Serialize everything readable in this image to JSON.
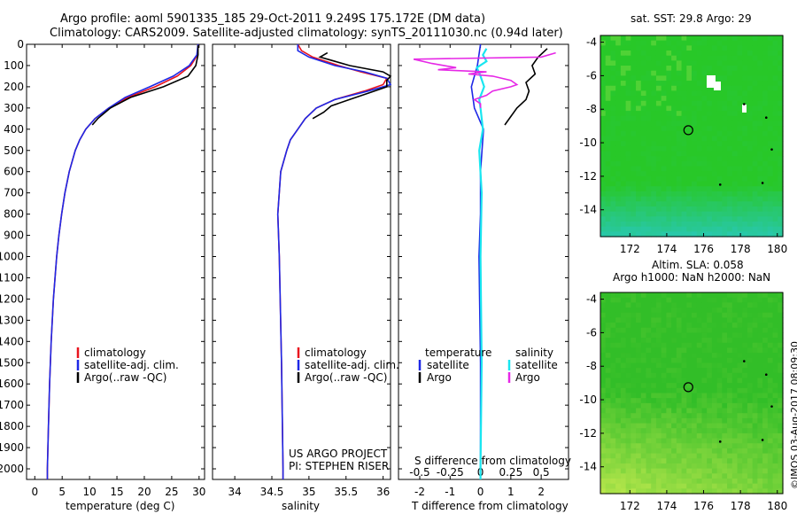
{
  "header": {
    "title_line1": "Argo profile: aoml 5901335_185 29-Oct-2011 9.249S 175.172E (DM data)",
    "title_line2": "Climatology: CARS2009. Satellite-adjusted climatology: synTS_20111030.nc (0.94d later)"
  },
  "colors": {
    "climatology": "#e8141e",
    "satellite": "#1e28e6",
    "argo": "#000000",
    "salinity_satellite": "#19e6f0",
    "salinity_argo": "#e628e6"
  },
  "panels": {
    "temperature": {
      "xlabel": "temperature (deg C)",
      "legend": [
        "climatology",
        "satellite-adj. clim.",
        "Argo(..raw -QC)"
      ]
    },
    "salinity": {
      "xlabel": "salinity",
      "legend": [
        "climatology",
        "satellite-adj. clim.",
        "Argo(..raw -QC)"
      ],
      "credit_line1": "US ARGO PROJECT",
      "credit_line2": "PI: STEPHEN RISER"
    },
    "difference": {
      "xlabel_bottom": "T difference from climatology",
      "xlabel_top": "S difference from climatology",
      "legend_temperature_header": "temperature",
      "legend_salinity_header": "salinity",
      "legend_satellite": "satellite",
      "legend_argo": "Argo"
    },
    "sst_map": {
      "title": "sat. SST: 29.8 Argo: 29"
    },
    "sla_map": {
      "title_line1": "Altim. SLA: 0.058",
      "title_line2": "Argo h1000: NaN h2000: NaN"
    }
  },
  "side_credit": "©IMOS 03-Aug-2017 08:09:30",
  "chart_data": [
    {
      "type": "line",
      "name": "temperature profile",
      "ylim": [
        2050,
        0
      ],
      "xlim": [
        -1.5,
        31
      ],
      "xticks": [
        0,
        5,
        10,
        15,
        20,
        25,
        30
      ],
      "yticks": [
        0,
        100,
        200,
        300,
        400,
        500,
        600,
        700,
        800,
        900,
        1000,
        1100,
        1200,
        1300,
        1400,
        1500,
        1600,
        1700,
        1800,
        1900,
        2000
      ],
      "series": [
        {
          "name": "climatology",
          "depth": [
            0,
            50,
            100,
            150,
            200,
            250,
            300,
            350,
            400,
            450,
            500,
            600,
            700,
            800,
            900,
            1000,
            1200,
            1400,
            1600,
            1800,
            2000,
            2050
          ],
          "values": [
            29.8,
            29.7,
            28.5,
            26.0,
            22.0,
            17.0,
            13.5,
            11.0,
            9.3,
            8.2,
            7.4,
            6.3,
            5.5,
            4.9,
            4.4,
            4.0,
            3.4,
            3.0,
            2.7,
            2.5,
            2.3,
            2.3
          ]
        },
        {
          "name": "satellite-adj. clim.",
          "depth": [
            0,
            50,
            100,
            150,
            200,
            250,
            300,
            350,
            400,
            450,
            500,
            600,
            700,
            800,
            900,
            1000,
            1200,
            1400,
            1600,
            1800,
            2000,
            2050
          ],
          "values": [
            29.8,
            29.6,
            28.2,
            25.3,
            21.0,
            16.5,
            13.5,
            11.0,
            9.3,
            8.2,
            7.4,
            6.3,
            5.5,
            4.9,
            4.4,
            4.0,
            3.4,
            3.0,
            2.7,
            2.5,
            2.3,
            2.3
          ]
        },
        {
          "name": "Argo(..raw -QC)",
          "depth": [
            5,
            50,
            100,
            150,
            200,
            250,
            300,
            350,
            380
          ],
          "values": [
            29.8,
            29.8,
            29.4,
            28.0,
            23.5,
            17.5,
            13.8,
            11.5,
            10.5
          ]
        }
      ]
    },
    {
      "type": "line",
      "name": "salinity profile",
      "ylim": [
        2050,
        0
      ],
      "xlim": [
        33.7,
        36.1
      ],
      "xticks": [
        34,
        34.5,
        35,
        35.5,
        36
      ],
      "series": [
        {
          "name": "climatology",
          "depth": [
            0,
            30,
            60,
            100,
            130,
            160,
            190,
            220,
            260,
            300,
            350,
            400,
            450,
            500,
            600,
            800,
            1000,
            1500,
            2000,
            2050
          ],
          "values": [
            34.85,
            34.9,
            35.05,
            35.4,
            35.7,
            36.05,
            36.0,
            35.75,
            35.35,
            35.1,
            34.95,
            34.85,
            34.75,
            34.7,
            34.62,
            34.58,
            34.6,
            34.63,
            34.65,
            34.65
          ]
        },
        {
          "name": "satellite-adj. clim.",
          "depth": [
            0,
            30,
            60,
            100,
            130,
            160,
            190,
            220,
            260,
            300,
            350,
            400,
            450,
            500,
            600,
            800,
            1000,
            1500,
            2000,
            2050
          ],
          "values": [
            34.85,
            34.85,
            35.0,
            35.35,
            35.75,
            36.05,
            36.1,
            35.8,
            35.35,
            35.1,
            34.95,
            34.85,
            34.75,
            34.7,
            34.62,
            34.58,
            34.6,
            34.63,
            34.65,
            34.65
          ]
        },
        {
          "name": "Argo(..raw -QC)",
          "depth": [
            40,
            60,
            80,
            100,
            130,
            150,
            170,
            200,
            230,
            260,
            290,
            320,
            350
          ],
          "values": [
            35.25,
            35.15,
            35.35,
            35.55,
            36.0,
            36.1,
            36.05,
            36.05,
            35.8,
            35.55,
            35.3,
            35.2,
            35.05
          ]
        }
      ]
    },
    {
      "type": "line",
      "name": "difference from climatology",
      "ylim": [
        2050,
        0
      ],
      "xlim_temperature": [
        -2.7,
        2.9
      ],
      "xticks_temperature": [
        -2,
        -1,
        0,
        1,
        2
      ],
      "xticks_salinity": [
        -0.5,
        -0.25,
        0,
        0.25,
        0.5
      ],
      "series": [
        {
          "name": "temperature satellite",
          "depth": [
            0,
            100,
            200,
            300,
            400,
            500,
            600,
            800,
            1000,
            1500,
            2000,
            2050
          ],
          "values": [
            0,
            -0.1,
            -0.3,
            -0.2,
            0.1,
            0.05,
            0,
            0,
            -0.05,
            0,
            0,
            0
          ]
        },
        {
          "name": "temperature Argo",
          "depth": [
            20,
            60,
            100,
            140,
            180,
            220,
            260,
            300,
            340,
            380
          ],
          "values": [
            2.2,
            1.9,
            1.7,
            1.8,
            1.5,
            1.6,
            1.5,
            1.2,
            1.0,
            0.8
          ]
        },
        {
          "name": "salinity satellite",
          "depth": [
            20,
            50,
            80,
            110,
            150,
            200,
            260,
            300,
            400,
            500,
            700,
            1000,
            1500,
            2000,
            2050
          ],
          "values": [
            0.05,
            0.02,
            0.05,
            -0.03,
            0.0,
            0.03,
            -0.01,
            0.0,
            0.02,
            -0.01,
            0.01,
            0.0,
            0.01,
            0.0,
            0.0
          ]
        },
        {
          "name": "salinity Argo",
          "depth": [
            40,
            60,
            70,
            90,
            110,
            120,
            130,
            140,
            150,
            170,
            190,
            200,
            220,
            240,
            260,
            280,
            300
          ],
          "values": [
            0.62,
            0.5,
            -0.55,
            -0.4,
            -0.2,
            -0.35,
            0.05,
            -0.1,
            0.1,
            0.25,
            0.3,
            0.25,
            0.1,
            0.05,
            -0.05,
            0.0,
            0.0
          ]
        }
      ]
    },
    {
      "type": "heatmap",
      "name": "SST map",
      "xlim": [
        170.4,
        180.3
      ],
      "ylim": [
        -15.6,
        -3.6
      ],
      "xticks": [
        172,
        174,
        176,
        178,
        180
      ],
      "yticks": [
        -4,
        -6,
        -8,
        -10,
        -12,
        -14
      ],
      "argo_position": {
        "lon": 175.172,
        "lat": -9.249
      }
    },
    {
      "type": "heatmap",
      "name": "SLA map",
      "xlim": [
        170.4,
        180.3
      ],
      "ylim": [
        -15.6,
        -3.6
      ],
      "xticks": [
        172,
        174,
        176,
        178,
        180
      ],
      "yticks": [
        -4,
        -6,
        -8,
        -10,
        -12,
        -14
      ],
      "argo_position": {
        "lon": 175.172,
        "lat": -9.249
      }
    }
  ]
}
